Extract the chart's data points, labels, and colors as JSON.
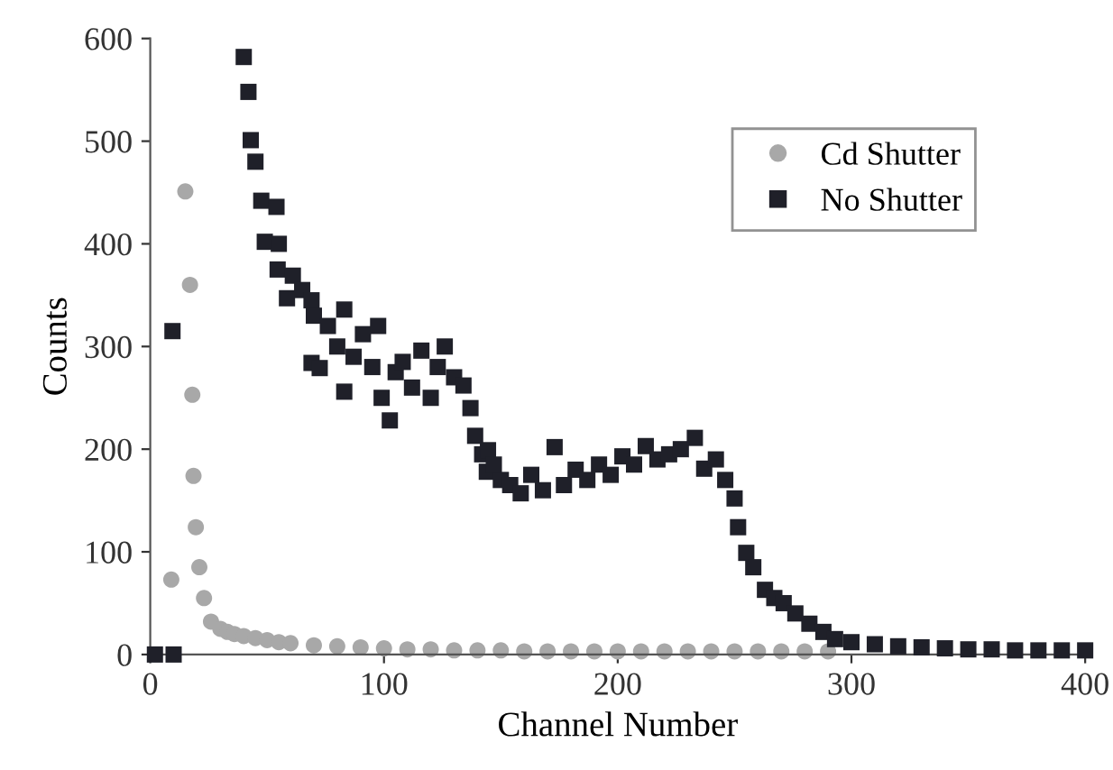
{
  "chart_data": {
    "type": "scatter",
    "xlabel": "Channel Number",
    "ylabel": "Counts",
    "xlim": [
      0,
      400
    ],
    "ylim": [
      0,
      600
    ],
    "xticks": [
      0,
      100,
      200,
      300,
      400
    ],
    "yticks": [
      0,
      100,
      200,
      300,
      400,
      500,
      600
    ],
    "grid": false,
    "legend": "top right",
    "series": [
      {
        "name": "Cd Shutter",
        "color": "#a8a8a8",
        "marker": "circle",
        "x": [
          9,
          15,
          17,
          18,
          18.5,
          19.5,
          21,
          23,
          26,
          30,
          33,
          36,
          40,
          45,
          50,
          55,
          60,
          70,
          80,
          90,
          100,
          110,
          120,
          130,
          140,
          150,
          160,
          170,
          180,
          190,
          200,
          210,
          220,
          230,
          240,
          250,
          260,
          270,
          280,
          290
        ],
        "values": [
          73,
          451,
          360,
          253,
          174,
          124,
          85,
          55,
          32,
          25,
          22,
          20,
          18,
          16,
          14,
          12,
          11,
          9,
          8,
          7,
          6,
          5,
          5,
          4,
          4,
          4,
          3,
          3,
          3,
          3,
          3,
          3,
          3,
          3,
          3,
          3,
          3,
          3,
          3,
          3
        ]
      },
      {
        "name": "No Shutter",
        "color": "#1f2029",
        "marker": "square",
        "x": [
          2,
          10,
          9.5,
          40,
          42,
          43,
          45,
          47.5,
          49,
          54,
          54.5,
          55,
          58.5,
          61,
          65,
          69,
          69,
          70,
          72.5,
          76,
          80,
          83,
          83,
          87,
          91,
          95,
          97.5,
          99,
          102.5,
          105,
          108,
          112,
          116,
          120,
          123,
          126,
          130,
          134,
          137,
          139,
          142,
          144,
          144.5,
          147,
          150,
          154,
          158.5,
          163,
          168,
          173,
          177,
          182,
          187,
          192,
          197,
          202,
          207,
          212,
          217,
          222,
          227,
          233,
          237,
          242,
          246,
          250,
          251.5,
          255,
          258,
          263,
          267,
          271,
          276,
          282,
          288,
          293,
          300,
          310,
          320,
          330,
          340,
          350,
          360,
          370,
          380,
          390,
          400
        ],
        "values": [
          0,
          0,
          315,
          582,
          548,
          501,
          480,
          442,
          402,
          436,
          375,
          400,
          347,
          369,
          355,
          345,
          284,
          330,
          279,
          320,
          300,
          336,
          256,
          290,
          312,
          280,
          320,
          250,
          228,
          275,
          285,
          260,
          296,
          250,
          280,
          300,
          270,
          262,
          240,
          213,
          195,
          178,
          199,
          185,
          170,
          165,
          157,
          175,
          160,
          202,
          165,
          180,
          170,
          185,
          175,
          193,
          185,
          203,
          190,
          195,
          200,
          211,
          181,
          190,
          170,
          152,
          124,
          99,
          85,
          63,
          55,
          50,
          40,
          30,
          22,
          15,
          12,
          10,
          8,
          7,
          6,
          5,
          5,
          4,
          4,
          4,
          4
        ]
      }
    ]
  }
}
